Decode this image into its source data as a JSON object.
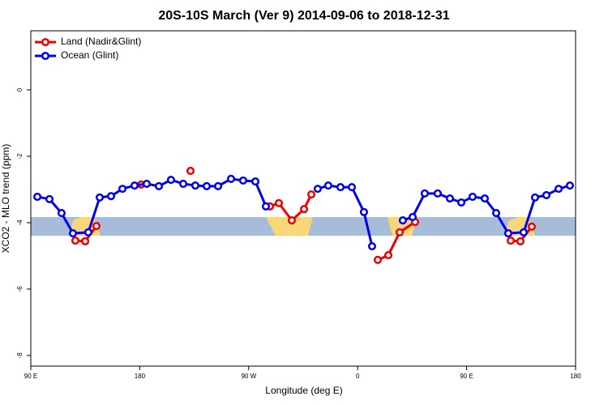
{
  "chart_data": {
    "type": "line",
    "title": "20S-10S March (Ver 9)   2014-09-06 to 2018-12-31",
    "xlabel": "Longitude (deg E)",
    "ylabel": "XCO2 - MLO trend (ppm)",
    "xlim": [
      90,
      540
    ],
    "ylim": [
      -8.32,
      1.78
    ],
    "xticks": [
      {
        "value": 90,
        "label": "90 E"
      },
      {
        "value": 180,
        "label": "180"
      },
      {
        "value": 270,
        "label": "90 W"
      },
      {
        "value": 360,
        "label": "0"
      },
      {
        "value": 450,
        "label": "90 E"
      },
      {
        "value": 540,
        "label": "180"
      }
    ],
    "yticks": [
      0,
      -2,
      -4,
      -6,
      -8
    ],
    "legend": "top-left",
    "series": [
      {
        "name": "Land (Nadir&Glint)",
        "color": "#ee0000",
        "x": [
          126.8,
          134.9,
          144.2,
          null,
          181.1,
          null,
          221.9,
          null,
          287.5,
          294.9,
          305.6,
          315.7,
          321.7,
          null,
          376.6,
          385.3,
          394.7,
          407.4,
          null,
          486.4,
          494.4,
          503.8
        ],
        "values": [
          -4.54,
          -4.56,
          -4.1,
          null,
          -2.85,
          null,
          -2.44,
          null,
          -3.51,
          -3.41,
          -3.93,
          -3.59,
          -3.15,
          null,
          -5.12,
          -4.98,
          -4.29,
          -3.98,
          null,
          -4.54,
          -4.56,
          -4.12
        ]
      },
      {
        "name": "Ocean (Glint)",
        "color": "#0000ee",
        "x": [
          95.4,
          105.4,
          115.4,
          124.8,
          137.5,
          146.9,
          156.3,
          165.7,
          175.7,
          185.7,
          195.8,
          205.8,
          215.9,
          225.9,
          235.3,
          244.7,
          255.4,
          265.4,
          275.5,
          284.2,
          null,
          327.0,
          335.7,
          345.8,
          355.2,
          365.2,
          371.9,
          null,
          397.3,
          405.4,
          415.4,
          426.1,
          436.2,
          445.6,
          454.9,
          465.0,
          474.4,
          484.4,
          497.1,
          506.5,
          515.9,
          526.0,
          535.3
        ],
        "values": [
          -3.22,
          -3.29,
          -3.71,
          -4.32,
          -4.29,
          -3.24,
          -3.2,
          -2.98,
          -2.88,
          -2.83,
          -2.9,
          -2.71,
          -2.83,
          -2.88,
          -2.9,
          -2.9,
          -2.68,
          -2.73,
          -2.76,
          -3.51,
          null,
          -2.98,
          -2.88,
          -2.93,
          -2.93,
          -3.68,
          -4.71,
          null,
          -3.93,
          -3.83,
          -3.12,
          -3.12,
          -3.27,
          -3.39,
          -3.22,
          -3.27,
          -3.71,
          -4.32,
          -4.29,
          -3.24,
          -3.17,
          -2.98,
          -2.88
        ]
      }
    ]
  }
}
